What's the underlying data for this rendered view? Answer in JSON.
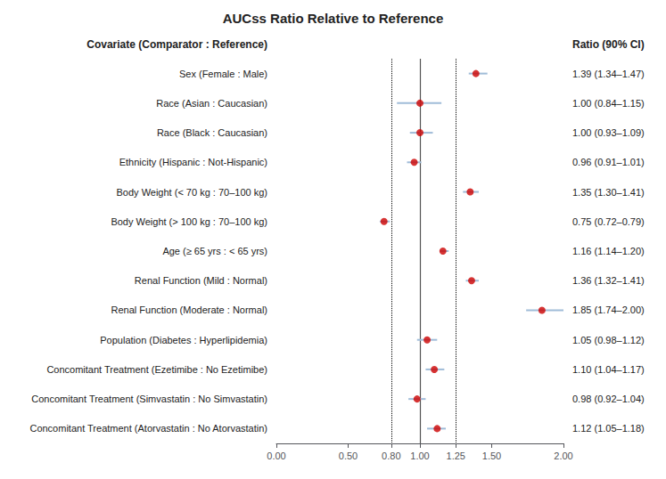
{
  "chart_data": {
    "type": "forest",
    "title": "AUCss Ratio Relative to Reference",
    "column_headers": {
      "left": "Covariate (Comparator : Reference)",
      "right": "Ratio (90% CI)"
    },
    "categories": [
      "Sex (Female : Male)",
      "Race (Asian : Caucasian)",
      "Race (Black : Caucasian)",
      "Ethnicity (Hispanic : Not-Hispanic)",
      "Body Weight (< 70 kg : 70–100 kg)",
      "Body Weight (> 100 kg : 70–100 kg)",
      "Age (≥ 65 yrs : < 65 yrs)",
      "Renal Function (Mild : Normal)",
      "Renal Function (Moderate : Normal)",
      "Population (Diabetes : Hyperlipidemia)",
      "Concomitant Treatment (Ezetimibe : No Ezetimibe)",
      "Concomitant Treatment (Simvastatin : No Simvastatin)",
      "Concomitant Treatment (Atorvastatin : No Atorvastatin)"
    ],
    "values": [
      1.39,
      1.0,
      1.0,
      0.96,
      1.35,
      0.75,
      1.16,
      1.36,
      1.85,
      1.05,
      1.1,
      0.98,
      1.12
    ],
    "ci_low": [
      1.34,
      0.84,
      0.93,
      0.91,
      1.3,
      0.72,
      1.14,
      1.32,
      1.74,
      0.98,
      1.04,
      0.92,
      1.05
    ],
    "ci_high": [
      1.47,
      1.15,
      1.09,
      1.01,
      1.41,
      0.79,
      1.2,
      1.41,
      2.0,
      1.12,
      1.17,
      1.04,
      1.18
    ],
    "value_labels": [
      "1.39 (1.34–1.47)",
      "1.00 (0.84–1.15)",
      "1.00 (0.93–1.09)",
      "0.96 (0.91–1.01)",
      "1.35 (1.30–1.41)",
      "0.75 (0.72–0.79)",
      "1.16 (1.14–1.20)",
      "1.36 (1.32–1.41)",
      "1.85 (1.74–2.00)",
      "1.05 (0.98–1.12)",
      "1.10 (1.04–1.17)",
      "0.98 (0.92–1.04)",
      "1.12 (1.05–1.18)"
    ],
    "xlim": [
      0.0,
      2.0
    ],
    "xticks": [
      {
        "value": 0.0,
        "label": "0.00"
      },
      {
        "value": 0.5,
        "label": "0.50"
      },
      {
        "value": 0.8,
        "label": "0.80"
      },
      {
        "value": 1.0,
        "label": "1.00"
      },
      {
        "value": 1.25,
        "label": "1.25"
      },
      {
        "value": 1.5,
        "label": "1.50"
      },
      {
        "value": 2.0,
        "label": "2.00"
      }
    ],
    "reference_lines": [
      {
        "x": 1.0,
        "line_style": "solid",
        "color": "#555555"
      },
      {
        "x": 0.8,
        "line_style": "dotted",
        "color": "#000000"
      },
      {
        "x": 1.25,
        "line_style": "dotted",
        "color": "#000000"
      }
    ],
    "color": "#cc0000",
    "ci_color": "#a0bcd8",
    "grid": false
  }
}
